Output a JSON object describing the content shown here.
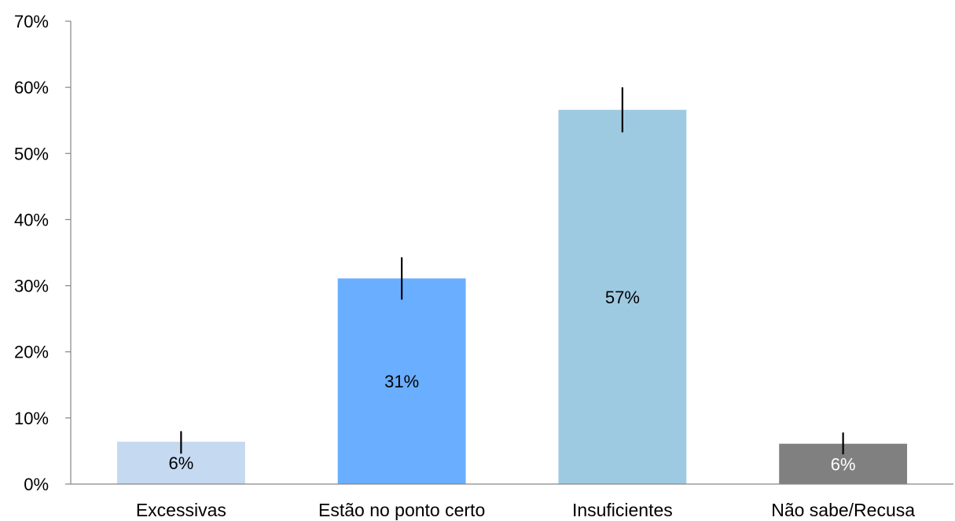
{
  "chart_data": {
    "type": "bar",
    "title": "",
    "xlabel": "",
    "ylabel": "",
    "ylim": [
      0,
      0.7
    ],
    "yticks": [
      "0%",
      "10%",
      "20%",
      "30%",
      "40%",
      "50%",
      "60%",
      "70%"
    ],
    "categories": [
      "Excessivas",
      "Estão no ponto certo",
      "Insuficientes",
      "Não sabe/Recusa"
    ],
    "values": [
      0.064,
      0.311,
      0.566,
      0.061
    ],
    "error_bars": [
      {
        "low": 0.046,
        "high": 0.08
      },
      {
        "low": 0.279,
        "high": 0.343
      },
      {
        "low": 0.532,
        "high": 0.6
      },
      {
        "low": 0.045,
        "high": 0.078
      }
    ],
    "data_labels": [
      "6%",
      "31%",
      "57%",
      "6%"
    ],
    "colors": [
      "#c5d9f1",
      "#6aaeff",
      "#9ecae1",
      "#808080"
    ],
    "label_colors": [
      "#000000",
      "#000000",
      "#000000",
      "#ffffff"
    ],
    "grid": false,
    "legend": "none"
  }
}
